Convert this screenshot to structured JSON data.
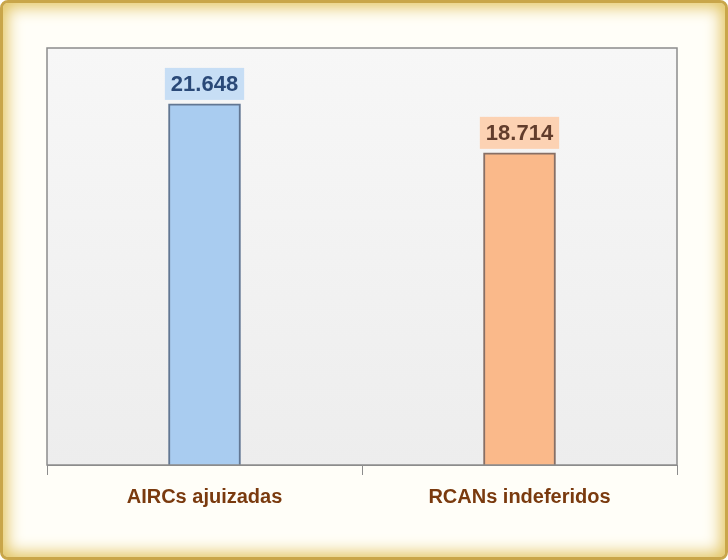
{
  "chart_data": {
    "type": "bar",
    "categories": [
      "AIRCs ajuizadas",
      "RCANs indeferidos"
    ],
    "values": [
      21648,
      18714
    ],
    "value_labels": [
      "21.648",
      "18.714"
    ],
    "colors": [
      "#a9ccf0",
      "#fab98a"
    ],
    "ylim": [
      0,
      25000
    ],
    "grid": false,
    "data_labels": true,
    "tick_labels": "x"
  }
}
